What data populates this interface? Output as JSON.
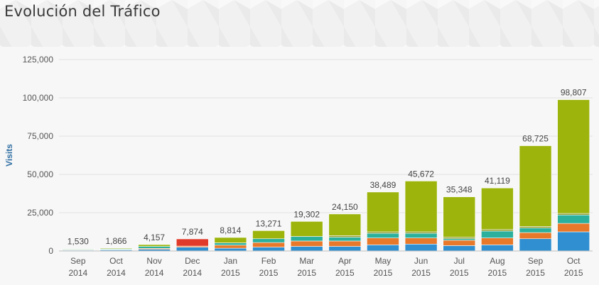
{
  "title": "Evolución del Tráfico",
  "chart_data": {
    "type": "bar",
    "stacked": true,
    "ylabel": "Visits",
    "ylim": [
      0,
      125000
    ],
    "yticks": [
      "0",
      "25,000",
      "50,000",
      "75,000",
      "100,000",
      "125,000"
    ],
    "ytick_values": [
      0,
      25000,
      50000,
      75000,
      100000,
      125000
    ],
    "grid": true,
    "categories": [
      [
        "Sep",
        "2014"
      ],
      [
        "Oct",
        "2014"
      ],
      [
        "Nov",
        "2014"
      ],
      [
        "Dec",
        "2014"
      ],
      [
        "Jan",
        "2015"
      ],
      [
        "Feb",
        "2015"
      ],
      [
        "Mar",
        "2015"
      ],
      [
        "Apr",
        "2015"
      ],
      [
        "May",
        "2015"
      ],
      [
        "Jun",
        "2015"
      ],
      [
        "Jul",
        "2015"
      ],
      [
        "Aug",
        "2015"
      ],
      [
        "Sep",
        "2015"
      ],
      [
        "Oct",
        "2015"
      ]
    ],
    "totals": [
      1530,
      1866,
      4157,
      7874,
      8814,
      13271,
      19302,
      24150,
      38489,
      45672,
      35348,
      41119,
      68725,
      98807
    ],
    "total_labels": [
      "1,530",
      "1,866",
      "4,157",
      "7,874",
      "8,814",
      "13,271",
      "19,302",
      "24,150",
      "38,489",
      "45,672",
      "35,348",
      "41,119",
      "68,725",
      "98,807"
    ],
    "series": [
      {
        "color": "#2f8fd0",
        "values": [
          500,
          600,
          1100,
          2500,
          1800,
          2500,
          3000,
          3000,
          4000,
          4500,
          3500,
          4000,
          8000,
          12500
        ]
      },
      {
        "color": "#e8782a",
        "values": [
          300,
          300,
          600,
          700,
          2000,
          3000,
          3500,
          3500,
          4500,
          4000,
          3500,
          4500,
          4000,
          5500
        ]
      },
      {
        "color": "#2bb09e",
        "values": [
          400,
          500,
          1300,
          0,
          1500,
          2500,
          3000,
          2500,
          3000,
          3000,
          1000,
          4500,
          3000,
          5500
        ]
      },
      {
        "color": "#e03a2a",
        "values": [
          0,
          0,
          0,
          4674,
          0,
          0,
          0,
          0,
          0,
          0,
          0,
          0,
          0,
          0
        ]
      },
      {
        "color": "#8b9a2a",
        "values": [
          0,
          0,
          0,
          0,
          0,
          0,
          0,
          1000,
          1000,
          1000,
          1000,
          1000,
          1000,
          1000
        ]
      },
      {
        "color": "#9db40c",
        "values": [
          330,
          466,
          1157,
          0,
          3514,
          5271,
          9802,
          14150,
          25989,
          33172,
          26348,
          27119,
          52725,
          74307
        ]
      }
    ]
  }
}
